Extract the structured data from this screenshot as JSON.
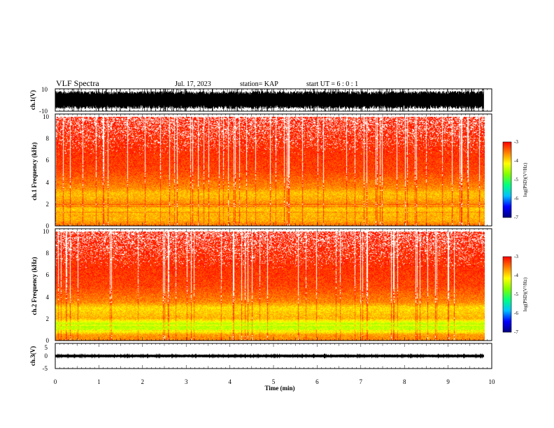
{
  "header": {
    "title": "VLF Spectra",
    "date": "Jul. 17, 2023",
    "station": "station= KAP",
    "start": "start UT =  6 : 0 : 1"
  },
  "chart_data": [
    {
      "type": "line",
      "panel": "ch1-waveform",
      "ylabel": "ch.1(V)",
      "ylim": [
        -10,
        10
      ],
      "yticks": [
        "10",
        "-10"
      ],
      "xlim": [
        0,
        10
      ],
      "color": "#000000",
      "envelope": {
        "typical_min": -8,
        "typical_max": 8,
        "peak": 10,
        "data_end_min": 9.82
      }
    },
    {
      "type": "heatmap",
      "panel": "ch1-spectrogram",
      "ylabel": "ch.1 Frequency (kHz)",
      "ylim": [
        0,
        10
      ],
      "yticks": [
        "0",
        "2",
        "4",
        "6",
        "8",
        "10"
      ],
      "xlim": [
        0,
        10
      ],
      "data_end_min": 9.82,
      "colorbar": {
        "label": "log(PSD)(V²/Hz)",
        "range": [
          -7,
          -3
        ],
        "ticks": [
          "-3",
          "-4",
          "-5",
          "-6",
          "-7"
        ]
      },
      "profile_khz_logpsd": [
        [
          0,
          -3.5
        ],
        [
          0.5,
          -3.8
        ],
        [
          1.0,
          -3.8
        ],
        [
          1.5,
          -3.9
        ],
        [
          2.0,
          -3.6
        ],
        [
          2.5,
          -3.8
        ],
        [
          3.0,
          -3.85
        ],
        [
          3.5,
          -3.6
        ],
        [
          5,
          -3.3
        ],
        [
          8,
          -3.15
        ],
        [
          10,
          -3.05
        ]
      ]
    },
    {
      "type": "heatmap",
      "panel": "ch2-spectrogram",
      "ylabel": "ch.2 Frequency (kHz)",
      "ylim": [
        0,
        10
      ],
      "yticks": [
        "0",
        "2",
        "4",
        "6",
        "8",
        "10"
      ],
      "xlim": [
        0,
        10
      ],
      "data_end_min": 9.82,
      "colorbar": {
        "label": "log(PSD)(V²/Hz)",
        "range": [
          -7,
          -3
        ],
        "ticks": [
          "-3",
          "-4",
          "-5",
          "-6",
          "-7"
        ]
      },
      "profile_khz_logpsd": [
        [
          0,
          -3.6
        ],
        [
          0.5,
          -3.7
        ],
        [
          1.0,
          -4.4
        ],
        [
          1.5,
          -4.5
        ],
        [
          2.0,
          -3.8
        ],
        [
          2.5,
          -3.9
        ],
        [
          3.0,
          -4.0
        ],
        [
          3.5,
          -3.6
        ],
        [
          5,
          -3.3
        ],
        [
          8,
          -3.15
        ],
        [
          10,
          -3.05
        ]
      ]
    },
    {
      "type": "line",
      "panel": "ch3-waveform",
      "ylabel": "ch.3(V)",
      "ylim": [
        -5,
        5
      ],
      "yticks": [
        "5",
        "0",
        "-5"
      ],
      "xlim": [
        0,
        10
      ],
      "color": "#000000",
      "envelope": {
        "typical_min": -0.6,
        "typical_max": 0.6,
        "peak": 0.9,
        "data_end_min": 9.82
      }
    }
  ],
  "time_axis": {
    "label": "Time (min)",
    "ticks": [
      "0",
      "1",
      "2",
      "3",
      "4",
      "5",
      "6",
      "7",
      "8",
      "9",
      "10"
    ]
  },
  "colors": {
    "colormap": [
      "#000080",
      "#0000ff",
      "#00c0ff",
      "#00ff80",
      "#80ff00",
      "#ffff00",
      "#ff8000",
      "#ff0000",
      "#ffffff"
    ]
  }
}
